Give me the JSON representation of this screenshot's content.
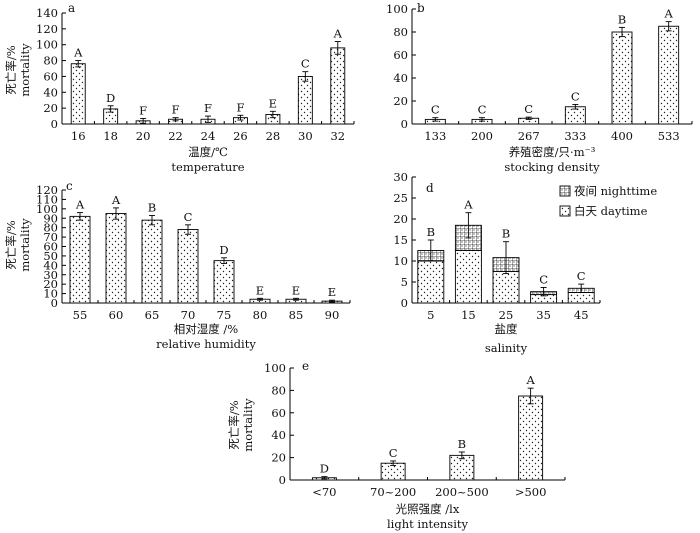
{
  "chart_data": [
    {
      "panel_label": "a",
      "type": "bar",
      "categories": [
        "16",
        "18",
        "20",
        "22",
        "24",
        "26",
        "28",
        "30",
        "32"
      ],
      "values": [
        76,
        19,
        4,
        6,
        6,
        8,
        12,
        60,
        96
      ],
      "errors": [
        4,
        4,
        3,
        2,
        4,
        3,
        4,
        6,
        8
      ],
      "significance": [
        "A",
        "D",
        "F",
        "F",
        "F",
        "F",
        "E",
        "C",
        "A"
      ],
      "ylabel": [
        "死亡率/%",
        "mortality"
      ],
      "xlabel": [
        "温度/℃",
        "temperature"
      ],
      "ylim": [
        0,
        140
      ],
      "yticks": [
        0,
        20,
        40,
        60,
        80,
        100,
        120,
        140
      ],
      "pattern": "dots"
    },
    {
      "panel_label": "b",
      "type": "bar",
      "categories": [
        "133",
        "200",
        "267",
        "333",
        "400",
        "533"
      ],
      "values": [
        4,
        4,
        5,
        15,
        80,
        85
      ],
      "errors": [
        1.5,
        1.5,
        1,
        2,
        4,
        4
      ],
      "significance": [
        "C",
        "C",
        "C",
        "C",
        "B",
        "A"
      ],
      "ylabel": [],
      "xlabel": [
        "养殖密度/只·m⁻³",
        "stocking density"
      ],
      "ylim": [
        0,
        100
      ],
      "yticks": [
        0,
        20,
        40,
        60,
        80,
        100
      ],
      "pattern": "dots"
    },
    {
      "panel_label": "c",
      "type": "bar",
      "categories": [
        "55",
        "60",
        "65",
        "70",
        "75",
        "80",
        "85",
        "90"
      ],
      "values": [
        92,
        95,
        88,
        78,
        45,
        4,
        4,
        2
      ],
      "errors": [
        4,
        6,
        5,
        5,
        3,
        1,
        1,
        1
      ],
      "significance": [
        "A",
        "A",
        "B",
        "C",
        "D",
        "E",
        "E",
        "E"
      ],
      "ylabel": [
        "死亡率/%",
        "mortality"
      ],
      "xlabel": [
        "相对湿度 /%",
        "relative humidity"
      ],
      "ylim": [
        0,
        120
      ],
      "yticks": [
        0,
        10,
        20,
        30,
        40,
        50,
        60,
        70,
        80,
        90,
        100,
        110,
        120
      ],
      "pattern": "dots"
    },
    {
      "panel_label": "d",
      "type": "stacked-bar",
      "categories": [
        "5",
        "15",
        "25",
        "35",
        "45"
      ],
      "series": [
        {
          "name": "白天 daytime",
          "values": [
            10,
            12.5,
            7.5,
            2,
            2.5
          ],
          "pattern": "dots"
        },
        {
          "name": "夜间 nighttime",
          "values": [
            2.5,
            6,
            3.3,
            0.7,
            1
          ],
          "pattern": "grid"
        }
      ],
      "totals": [
        12.5,
        18.5,
        10.8,
        2.7,
        3.5
      ],
      "errors": [
        2.5,
        3,
        3.8,
        1,
        1
      ],
      "significance": [
        "B",
        "A",
        "B",
        "C",
        "C"
      ],
      "ylabel": [],
      "xlabel": [
        "盐度",
        "salinity"
      ],
      "ylim": [
        0,
        30
      ],
      "yticks": [
        0,
        5,
        10,
        15,
        20,
        25,
        30
      ],
      "legend_position": "top-right"
    },
    {
      "panel_label": "e",
      "type": "bar",
      "categories": [
        "<70",
        "70~200",
        "200~500",
        ">500"
      ],
      "values": [
        2,
        15,
        22,
        75
      ],
      "errors": [
        1,
        2,
        3,
        7
      ],
      "significance": [
        "D",
        "C",
        "B",
        "A"
      ],
      "ylabel": [
        "死亡率/%",
        "mortality"
      ],
      "xlabel": [
        "光照强度 /lx",
        "light intensity"
      ],
      "ylim": [
        0,
        100
      ],
      "yticks": [
        0,
        20,
        40,
        60,
        80,
        100
      ],
      "pattern": "dots"
    }
  ]
}
